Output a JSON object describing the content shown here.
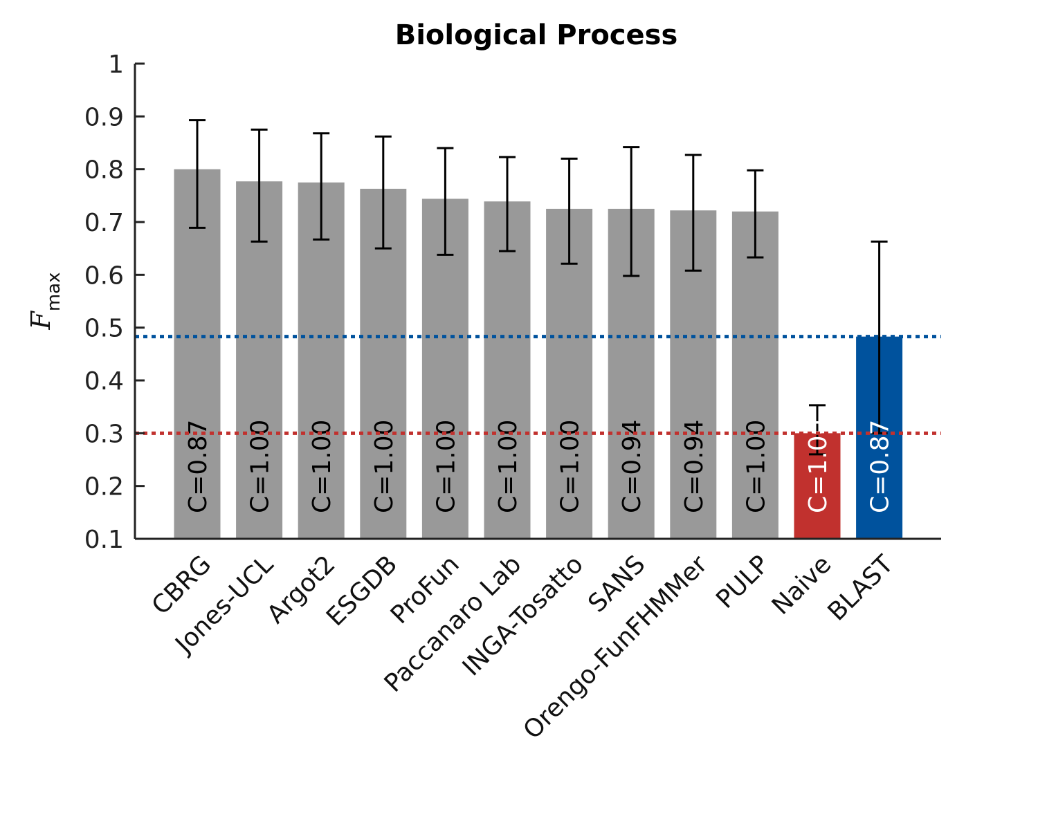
{
  "chart_data": {
    "type": "bar",
    "title": "Biological Process",
    "ylabel": "F",
    "ylabel_subscript": "max",
    "xlabel": "",
    "ylim": [
      0.1,
      1.0
    ],
    "yticks": [
      0.1,
      0.2,
      0.3,
      0.4,
      0.5,
      0.6,
      0.7,
      0.8,
      0.9,
      1
    ],
    "ytick_labels": [
      "0.1",
      "0.2",
      "0.3",
      "0.4",
      "0.5",
      "0.6",
      "0.7",
      "0.8",
      "0.9",
      "1"
    ],
    "categories": [
      "CBRG",
      "Jones-UCL",
      "Argot2",
      "ESGDB",
      "ProFun",
      "Paccanaro Lab",
      "INGA-Tosatto",
      "SANS",
      "Orengo-FunFHMMer",
      "PULP",
      "Naive",
      "BLAST"
    ],
    "values": [
      0.8,
      0.777,
      0.775,
      0.763,
      0.744,
      0.739,
      0.725,
      0.725,
      0.722,
      0.72,
      0.3,
      0.483
    ],
    "error_low": [
      0.689,
      0.663,
      0.667,
      0.65,
      0.638,
      0.645,
      0.621,
      0.598,
      0.608,
      0.633,
      0.26,
      0.3
    ],
    "error_high": [
      0.893,
      0.875,
      0.868,
      0.862,
      0.84,
      0.823,
      0.82,
      0.842,
      0.827,
      0.798,
      0.353,
      0.663
    ],
    "coverage_labels": [
      "C=0.87",
      "C=1.00",
      "C=1.00",
      "C=1.00",
      "C=1.00",
      "C=1.00",
      "C=1.00",
      "C=0.94",
      "C=0.94",
      "C=1.00",
      "C=1.00",
      "C=0.87"
    ],
    "bar_colors": [
      "#999999",
      "#999999",
      "#999999",
      "#999999",
      "#999999",
      "#999999",
      "#999999",
      "#999999",
      "#999999",
      "#999999",
      "#c1312e",
      "#00529d"
    ],
    "label_colors": [
      "#000000",
      "#000000",
      "#000000",
      "#000000",
      "#000000",
      "#000000",
      "#000000",
      "#000000",
      "#000000",
      "#000000",
      "#ffffff",
      "#ffffff"
    ],
    "reference_lines": [
      {
        "value": 0.483,
        "color": "#00529d",
        "style": "dotted"
      },
      {
        "value": 0.3,
        "color": "#c1312e",
        "style": "dotted"
      }
    ],
    "grid": false,
    "legend": "none"
  }
}
